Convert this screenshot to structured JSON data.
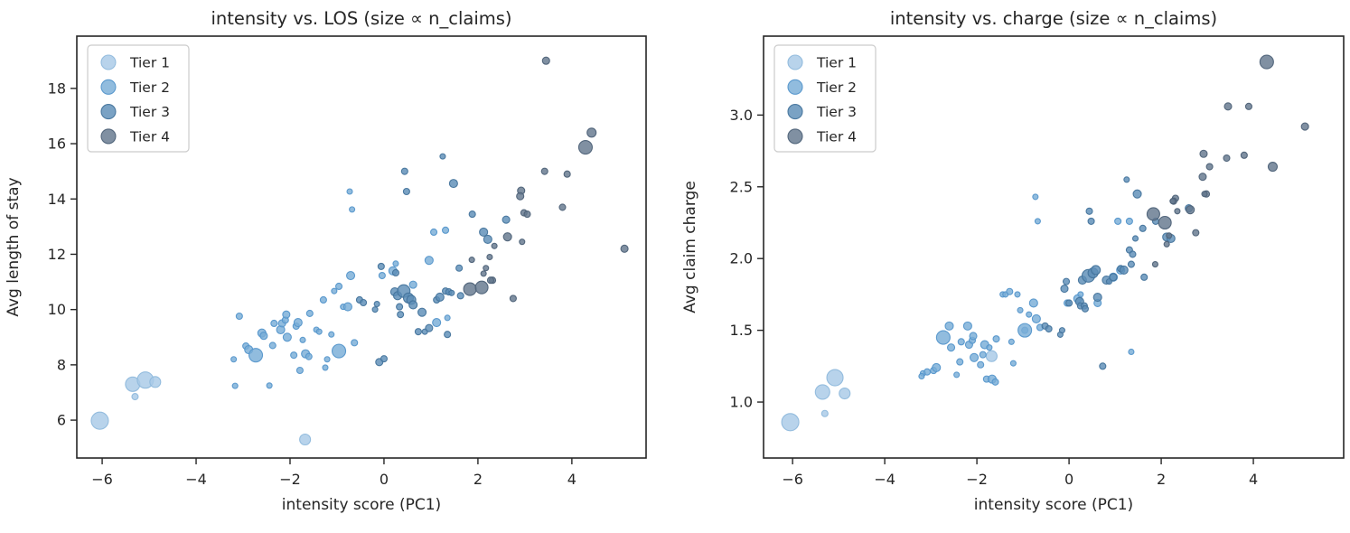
{
  "figure": {
    "background": "#ffffff",
    "text_color": "#262626",
    "spine_color": "#262626"
  },
  "chart_data": {
    "type": "scatter",
    "description": "Two side-by-side bubble scatter panels sharing the same x values and bubble sizes; bubble size proportional to n_claims, color by Tier.",
    "tiers": [
      {
        "label": "Tier 1",
        "fill": "#a8c9e6",
        "edge": "#8fb9dc"
      },
      {
        "label": "Tier 2",
        "fill": "#79add7",
        "edge": "#5596cb"
      },
      {
        "label": "Tier 3",
        "fill": "#5d8db7",
        "edge": "#44749c"
      },
      {
        "label": "Tier 4",
        "fill": "#64788d",
        "edge": "#4e6278"
      }
    ],
    "legend": {
      "position": "upper left",
      "entries": [
        "Tier 1",
        "Tier 2",
        "Tier 3",
        "Tier 4"
      ]
    },
    "point_fields": [
      "x_intensity_pc1",
      "avg_length_of_stay",
      "avg_claim_charge",
      "tier",
      "marker_radius_px"
    ],
    "points": [
      [
        -6.05,
        5.98,
        0.86,
        1,
        9.5
      ],
      [
        -5.35,
        7.3,
        1.07,
        1,
        8
      ],
      [
        -5.08,
        7.45,
        1.17,
        1,
        9
      ],
      [
        -4.87,
        7.38,
        1.06,
        1,
        6
      ],
      [
        -5.3,
        6.85,
        0.92,
        1,
        3.5
      ],
      [
        -1.68,
        5.3,
        1.32,
        1,
        6
      ],
      [
        -3.17,
        7.24,
        1.2,
        2,
        3
      ],
      [
        -3.08,
        9.76,
        1.21,
        2,
        3.5
      ],
      [
        -3.2,
        8.2,
        1.18,
        2,
        3
      ],
      [
        -2.94,
        8.68,
        1.22,
        2,
        3.5
      ],
      [
        -2.88,
        8.55,
        1.24,
        2,
        4.5
      ],
      [
        -2.73,
        8.35,
        1.45,
        2,
        7.5
      ],
      [
        -2.6,
        9.15,
        1.53,
        2,
        4.5
      ],
      [
        -2.56,
        9.05,
        1.38,
        2,
        4
      ],
      [
        -2.44,
        7.25,
        1.19,
        2,
        3
      ],
      [
        -2.37,
        8.7,
        1.28,
        2,
        3.5
      ],
      [
        -2.34,
        9.5,
        1.42,
        2,
        3.5
      ],
      [
        -2.2,
        9.27,
        1.53,
        2,
        4.5
      ],
      [
        -2.17,
        9.5,
        1.4,
        2,
        4
      ],
      [
        -2.1,
        9.62,
        1.43,
        2,
        3.5
      ],
      [
        -2.08,
        9.82,
        1.46,
        2,
        4
      ],
      [
        -2.06,
        9.0,
        1.31,
        2,
        4.5
      ],
      [
        -1.92,
        8.35,
        1.26,
        2,
        3.5
      ],
      [
        -1.87,
        9.4,
        1.33,
        2,
        3.5
      ],
      [
        -1.83,
        9.53,
        1.4,
        2,
        4.5
      ],
      [
        -1.79,
        7.8,
        1.16,
        2,
        3.5
      ],
      [
        -1.73,
        8.9,
        1.38,
        2,
        3
      ],
      [
        -1.67,
        8.4,
        1.16,
        2,
        4.5
      ],
      [
        -1.6,
        8.3,
        1.14,
        2,
        3.5
      ],
      [
        -1.58,
        9.86,
        1.44,
        2,
        3.5
      ],
      [
        -1.44,
        9.27,
        1.75,
        2,
        3
      ],
      [
        -1.38,
        9.2,
        1.75,
        2,
        3
      ],
      [
        -1.29,
        10.35,
        1.77,
        2,
        3.5
      ],
      [
        -1.25,
        7.9,
        1.42,
        2,
        3
      ],
      [
        -1.21,
        8.2,
        1.27,
        2,
        3
      ],
      [
        -1.12,
        9.1,
        1.75,
        2,
        3
      ],
      [
        -1.06,
        10.67,
        1.64,
        2,
        3
      ],
      [
        -0.96,
        10.84,
        1.5,
        2,
        3.5
      ],
      [
        -0.96,
        8.5,
        1.5,
        2,
        7.5
      ],
      [
        -0.87,
        10.1,
        1.61,
        2,
        3
      ],
      [
        -0.77,
        10.1,
        1.69,
        2,
        4.5
      ],
      [
        -0.73,
        14.27,
        2.43,
        2,
        3
      ],
      [
        -0.68,
        13.62,
        2.26,
        2,
        3
      ],
      [
        -0.71,
        11.23,
        1.58,
        2,
        4.5
      ],
      [
        -0.63,
        8.8,
        1.52,
        2,
        3.5
      ],
      [
        -0.04,
        11.23,
        1.69,
        2,
        3.5
      ],
      [
        0.19,
        11.4,
        1.72,
        2,
        4.5
      ],
      [
        0.25,
        11.66,
        1.75,
        2,
        3
      ],
      [
        0.62,
        10.9,
        1.69,
        2,
        4
      ],
      [
        0.96,
        11.78,
        1.87,
        2,
        4.5
      ],
      [
        1.06,
        12.8,
        2.26,
        2,
        3.5
      ],
      [
        1.31,
        12.87,
        2.26,
        2,
        3.5
      ],
      [
        1.12,
        9.53,
        1.92,
        2,
        4.5
      ],
      [
        1.35,
        9.7,
        1.35,
        2,
        3
      ],
      [
        -0.52,
        10.35,
        1.53,
        3,
        3.5
      ],
      [
        -0.44,
        10.25,
        1.51,
        3,
        3.5
      ],
      [
        -0.19,
        10.0,
        1.47,
        3,
        3
      ],
      [
        -0.15,
        10.2,
        1.5,
        3,
        3
      ],
      [
        -0.1,
        8.1,
        1.79,
        3,
        4
      ],
      [
        0.0,
        8.22,
        1.69,
        3,
        3.5
      ],
      [
        -0.06,
        11.56,
        1.84,
        3,
        3.5
      ],
      [
        0.23,
        10.64,
        1.7,
        3,
        4.5
      ],
      [
        0.25,
        11.33,
        1.67,
        3,
        3.5
      ],
      [
        0.29,
        10.5,
        1.85,
        3,
        4.5
      ],
      [
        0.33,
        10.1,
        1.67,
        3,
        3.5
      ],
      [
        0.35,
        9.82,
        1.65,
        3,
        3.5
      ],
      [
        0.42,
        10.67,
        1.88,
        3,
        7
      ],
      [
        0.52,
        10.42,
        1.9,
        3,
        5.5
      ],
      [
        0.58,
        10.35,
        1.92,
        3,
        5
      ],
      [
        0.62,
        10.17,
        1.73,
        3,
        4.5
      ],
      [
        0.73,
        9.2,
        1.25,
        3,
        3.5
      ],
      [
        0.81,
        9.9,
        1.85,
        3,
        4.5
      ],
      [
        0.87,
        9.2,
        1.84,
        3,
        3
      ],
      [
        0.96,
        9.33,
        1.87,
        3,
        4
      ],
      [
        1.12,
        10.35,
        1.93,
        3,
        3.5
      ],
      [
        1.19,
        10.45,
        1.92,
        3,
        4.5
      ],
      [
        1.31,
        10.67,
        2.06,
        3,
        3.5
      ],
      [
        1.38,
        10.64,
        2.03,
        3,
        3.5
      ],
      [
        1.44,
        10.6,
        2.14,
        3,
        3
      ],
      [
        1.35,
        9.1,
        1.96,
        3,
        3.5
      ],
      [
        1.63,
        10.5,
        1.87,
        3,
        3.5
      ],
      [
        1.6,
        11.5,
        2.21,
        3,
        3.5
      ],
      [
        0.44,
        15.0,
        2.33,
        3,
        3.5
      ],
      [
        0.48,
        14.27,
        2.26,
        3,
        3.5
      ],
      [
        1.25,
        15.54,
        2.55,
        3,
        3
      ],
      [
        1.48,
        14.56,
        2.45,
        3,
        4.5
      ],
      [
        1.88,
        13.45,
        2.26,
        3,
        3.5
      ],
      [
        2.12,
        12.8,
        2.15,
        3,
        4.5
      ],
      [
        2.21,
        12.54,
        2.14,
        3,
        4.5
      ],
      [
        2.6,
        13.25,
        2.35,
        3,
        4
      ],
      [
        3.45,
        19.0,
        3.06,
        4,
        4
      ],
      [
        4.42,
        16.4,
        2.64,
        4,
        5
      ],
      [
        4.29,
        15.87,
        3.37,
        4,
        7.5
      ],
      [
        5.12,
        12.2,
        2.92,
        4,
        4
      ],
      [
        3.9,
        14.9,
        3.06,
        4,
        3.5
      ],
      [
        3.42,
        15.0,
        2.7,
        4,
        3.5
      ],
      [
        2.92,
        14.3,
        2.73,
        4,
        4
      ],
      [
        2.9,
        14.1,
        2.57,
        4,
        4
      ],
      [
        2.98,
        13.5,
        2.45,
        4,
        3.5
      ],
      [
        3.05,
        13.45,
        2.64,
        4,
        3.5
      ],
      [
        3.8,
        13.7,
        2.72,
        4,
        3.5
      ],
      [
        2.63,
        12.63,
        2.34,
        4,
        4.5
      ],
      [
        2.31,
        11.06,
        2.42,
        4,
        3.5
      ],
      [
        2.27,
        11.06,
        2.4,
        4,
        3.5
      ],
      [
        2.75,
        10.4,
        2.18,
        4,
        3.5
      ],
      [
        1.83,
        10.74,
        2.31,
        4,
        7
      ],
      [
        2.08,
        10.8,
        2.25,
        4,
        7
      ],
      [
        2.25,
        11.9,
        2.4,
        4,
        3
      ],
      [
        2.35,
        12.3,
        2.33,
        4,
        3
      ],
      [
        2.17,
        11.5,
        2.16,
        4,
        3
      ],
      [
        2.12,
        11.3,
        2.1,
        4,
        3
      ],
      [
        1.87,
        11.8,
        1.96,
        4,
        3
      ],
      [
        2.94,
        12.45,
        2.45,
        4,
        3
      ]
    ],
    "panels": [
      {
        "title": "intensity vs. LOS (size ∝ n_claims)",
        "xlabel": "intensity score (PC1)",
        "ylabel": "Avg length of stay",
        "y_field": 1,
        "xlim": [
          -6.54,
          5.58
        ],
        "ylim": [
          4.63,
          19.89
        ],
        "xticks": [
          {
            "v": -6,
            "label": "−6"
          },
          {
            "v": -4,
            "label": "−4"
          },
          {
            "v": -2,
            "label": "−2"
          },
          {
            "v": 0,
            "label": "0"
          },
          {
            "v": 2,
            "label": "2"
          },
          {
            "v": 4,
            "label": "4"
          }
        ],
        "yticks": [
          {
            "v": 6,
            "label": "6"
          },
          {
            "v": 8,
            "label": "8"
          },
          {
            "v": 10,
            "label": "10"
          },
          {
            "v": 12,
            "label": "12"
          },
          {
            "v": 14,
            "label": "14"
          },
          {
            "v": 16,
            "label": "16"
          },
          {
            "v": 18,
            "label": "18"
          }
        ],
        "grid": false
      },
      {
        "title": "intensity vs. charge (size ∝ n_claims)",
        "xlabel": "intensity score (PC1)",
        "ylabel": "Avg claim charge",
        "y_field": 2,
        "xlim": [
          -6.63,
          5.96
        ],
        "ylim": [
          0.61,
          3.55
        ],
        "xticks": [
          {
            "v": -6,
            "label": "−6"
          },
          {
            "v": -4,
            "label": "−4"
          },
          {
            "v": -2,
            "label": "−2"
          },
          {
            "v": 0,
            "label": "0"
          },
          {
            "v": 2,
            "label": "2"
          },
          {
            "v": 4,
            "label": "4"
          }
        ],
        "yticks": [
          {
            "v": 1.0,
            "label": "1.0"
          },
          {
            "v": 1.5,
            "label": "1.5"
          },
          {
            "v": 2.0,
            "label": "2.0"
          },
          {
            "v": 2.5,
            "label": "2.5"
          },
          {
            "v": 3.0,
            "label": "3.0"
          }
        ],
        "grid": false
      }
    ]
  }
}
